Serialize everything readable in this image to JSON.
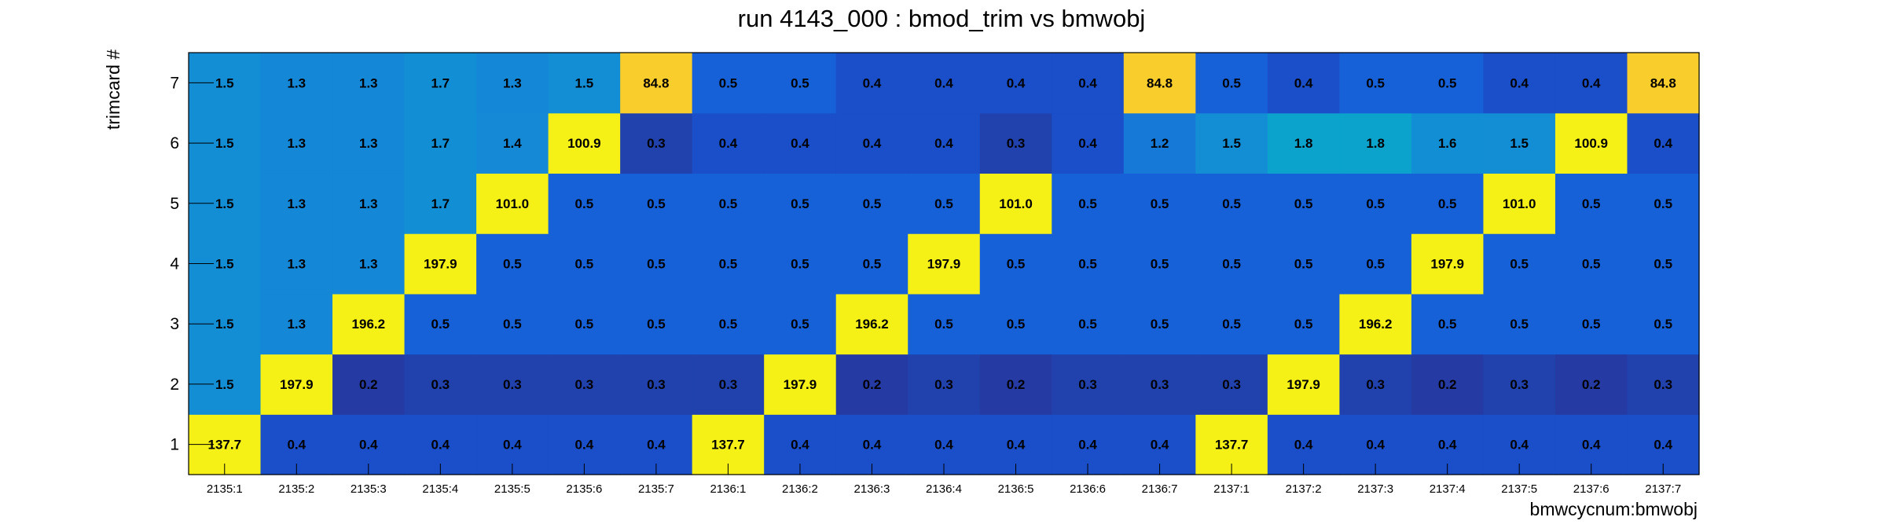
{
  "chart_data": {
    "type": "heatmap",
    "title": "run 4143_000 : bmod_trim vs bmwobj",
    "xlabel": "bmwcycnum:bmwobj",
    "ylabel": "trimcard #",
    "x_categories": [
      "2135:1",
      "2135:2",
      "2135:3",
      "2135:4",
      "2135:5",
      "2135:6",
      "2135:7",
      "2136:1",
      "2136:2",
      "2136:3",
      "2136:4",
      "2136:5",
      "2136:6",
      "2136:7",
      "2137:1",
      "2137:2",
      "2137:3",
      "2137:4",
      "2137:5",
      "2137:6",
      "2137:7"
    ],
    "y_categories": [
      "1",
      "2",
      "3",
      "4",
      "5",
      "6",
      "7"
    ],
    "values": [
      [
        137.7,
        0.4,
        0.4,
        0.4,
        0.4,
        0.4,
        0.4,
        137.7,
        0.4,
        0.4,
        0.4,
        0.4,
        0.4,
        0.4,
        137.7,
        0.4,
        0.4,
        0.4,
        0.4,
        0.4,
        0.4
      ],
      [
        1.5,
        197.9,
        0.2,
        0.3,
        0.3,
        0.3,
        0.3,
        0.3,
        197.9,
        0.2,
        0.3,
        0.2,
        0.3,
        0.3,
        0.3,
        197.9,
        0.3,
        0.2,
        0.3,
        0.2,
        0.3
      ],
      [
        1.5,
        1.3,
        196.2,
        0.5,
        0.5,
        0.5,
        0.5,
        0.5,
        0.5,
        196.2,
        0.5,
        0.5,
        0.5,
        0.5,
        0.5,
        0.5,
        196.2,
        0.5,
        0.5,
        0.5,
        0.5
      ],
      [
        1.5,
        1.3,
        1.3,
        197.9,
        0.5,
        0.5,
        0.5,
        0.5,
        0.5,
        0.5,
        197.9,
        0.5,
        0.5,
        0.5,
        0.5,
        0.5,
        0.5,
        197.9,
        0.5,
        0.5,
        0.5
      ],
      [
        1.5,
        1.3,
        1.3,
        1.7,
        101.0,
        0.5,
        0.5,
        0.5,
        0.5,
        0.5,
        0.5,
        101.0,
        0.5,
        0.5,
        0.5,
        0.5,
        0.5,
        0.5,
        101.0,
        0.5,
        0.5
      ],
      [
        1.5,
        1.3,
        1.3,
        1.7,
        1.4,
        100.9,
        0.3,
        0.4,
        0.4,
        0.4,
        0.4,
        0.3,
        0.4,
        1.2,
        1.5,
        1.8,
        1.8,
        1.6,
        1.5,
        100.9,
        0.4
      ],
      [
        1.5,
        1.3,
        1.3,
        1.7,
        1.3,
        1.5,
        84.8,
        0.5,
        0.5,
        0.4,
        0.4,
        0.4,
        0.4,
        84.8,
        0.5,
        0.4,
        0.5,
        0.5,
        0.4,
        0.4,
        84.8
      ]
    ],
    "colors": {
      "low_band": "#1f3ea8",
      "cyan": "#149ad4",
      "yellow": "#f5f015",
      "gold": "#f9cd2b"
    }
  }
}
